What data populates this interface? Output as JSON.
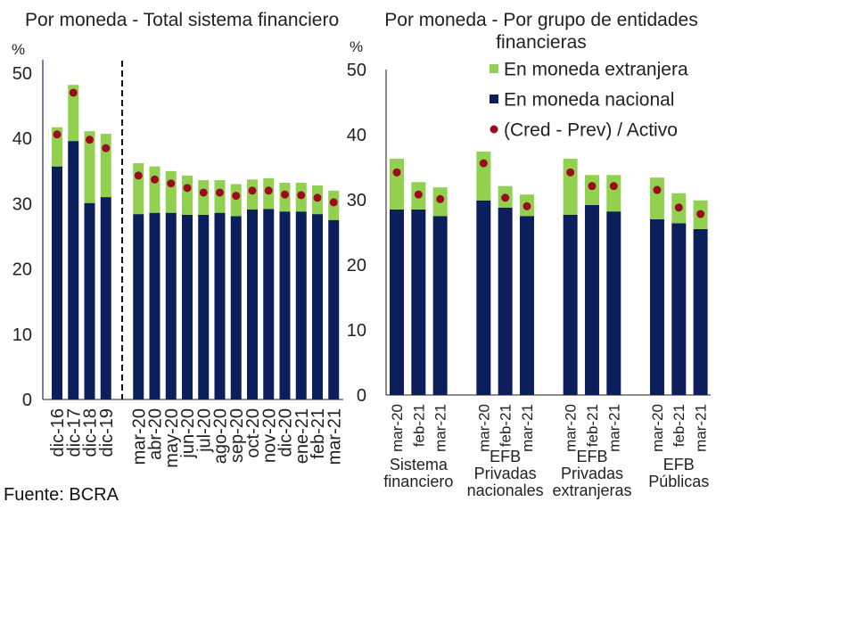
{
  "chart_data": [
    {
      "type": "bar",
      "stacked": true,
      "title": "Por moneda - Total sistema financiero",
      "ylabel": "%",
      "ylim": [
        0,
        50
      ],
      "yticks": [
        0,
        10,
        20,
        30,
        40,
        50
      ],
      "grid": false,
      "dashed_divider_between_groups": true,
      "groups": [
        {
          "categories": [
            "dic-16",
            "dic-17",
            "dic-18",
            "dic-19"
          ]
        },
        {
          "categories": [
            "mar-20",
            "abr-20",
            "may-20",
            "jun-20",
            "jul-20",
            "ago-20",
            "sep-20",
            "oct-20",
            "nov-20",
            "dic-20",
            "ene-21",
            "feb-21",
            "mar-21"
          ]
        }
      ],
      "series": [
        {
          "type": "bar",
          "color": "#92d050",
          "values": [
            [
              6.0,
              8.6,
              11.0,
              9.7
            ],
            [
              7.8,
              7.1,
              6.4,
              6.0,
              5.3,
              5.0,
              4.9,
              4.6,
              4.7,
              4.4,
              4.4,
              4.4,
              4.5
            ]
          ]
        },
        {
          "type": "bar",
          "color": "#0c1f5c",
          "values": [
            [
              35.7,
              39.6,
              30.1,
              31.0
            ],
            [
              28.4,
              28.6,
              28.6,
              28.3,
              28.3,
              28.6,
              28.1,
              29.1,
              29.2,
              28.8,
              28.8,
              28.4,
              27.5
            ]
          ]
        },
        {
          "type": "marker",
          "color": "#9b0a1e",
          "values": [
            [
              40.6,
              47.0,
              39.8,
              38.5
            ],
            [
              34.3,
              33.7,
              33.1,
              32.4,
              31.7,
              31.7,
              31.2,
              32.0,
              32.0,
              31.4,
              31.3,
              30.9,
              30.2
            ]
          ]
        }
      ]
    },
    {
      "type": "bar",
      "stacked": true,
      "title": "Por moneda - Por grupo de entidades financieras",
      "ylabel": "%",
      "ylim": [
        0,
        50
      ],
      "yticks": [
        0,
        10,
        20,
        30,
        40,
        50
      ],
      "grid": false,
      "legend_position": "top-right",
      "groups": [
        {
          "label": "Sistema financiero",
          "categories": [
            "mar-20",
            "feb-21",
            "mar-21"
          ]
        },
        {
          "label": "EFB Privadas nacionales",
          "categories": [
            "mar-20",
            "feb-21",
            "mar-21"
          ]
        },
        {
          "label": "EFB Privadas extranjeras",
          "categories": [
            "mar-20",
            "feb-21",
            "mar-21"
          ]
        },
        {
          "label": "EFB Públicas",
          "categories": [
            "mar-20",
            "feb-21",
            "mar-21"
          ]
        }
      ],
      "series": [
        {
          "name": "En moneda extranjera",
          "type": "bar",
          "color": "#92d050",
          "values": [
            [
              7.8,
              4.2,
              4.4
            ],
            [
              7.5,
              3.3,
              3.3
            ],
            [
              8.6,
              4.6,
              5.6
            ],
            [
              6.4,
              4.6,
              4.4
            ]
          ]
        },
        {
          "name": "En moneda nacional",
          "type": "bar",
          "color": "#0c1f5c",
          "values": [
            [
              28.5,
              28.5,
              27.5
            ],
            [
              29.9,
              28.8,
              27.5
            ],
            [
              27.7,
              29.2,
              28.2
            ],
            [
              27.0,
              26.4,
              25.5
            ]
          ]
        },
        {
          "name": "(Cred - Prev) / Activo",
          "type": "marker",
          "color": "#9b0a1e",
          "values": [
            [
              34.2,
              30.8,
              30.1
            ],
            [
              35.6,
              30.3,
              29.0
            ],
            [
              34.2,
              32.1,
              32.1
            ],
            [
              31.5,
              28.8,
              27.8
            ]
          ]
        }
      ]
    }
  ],
  "source": "Fuente: BCRA"
}
